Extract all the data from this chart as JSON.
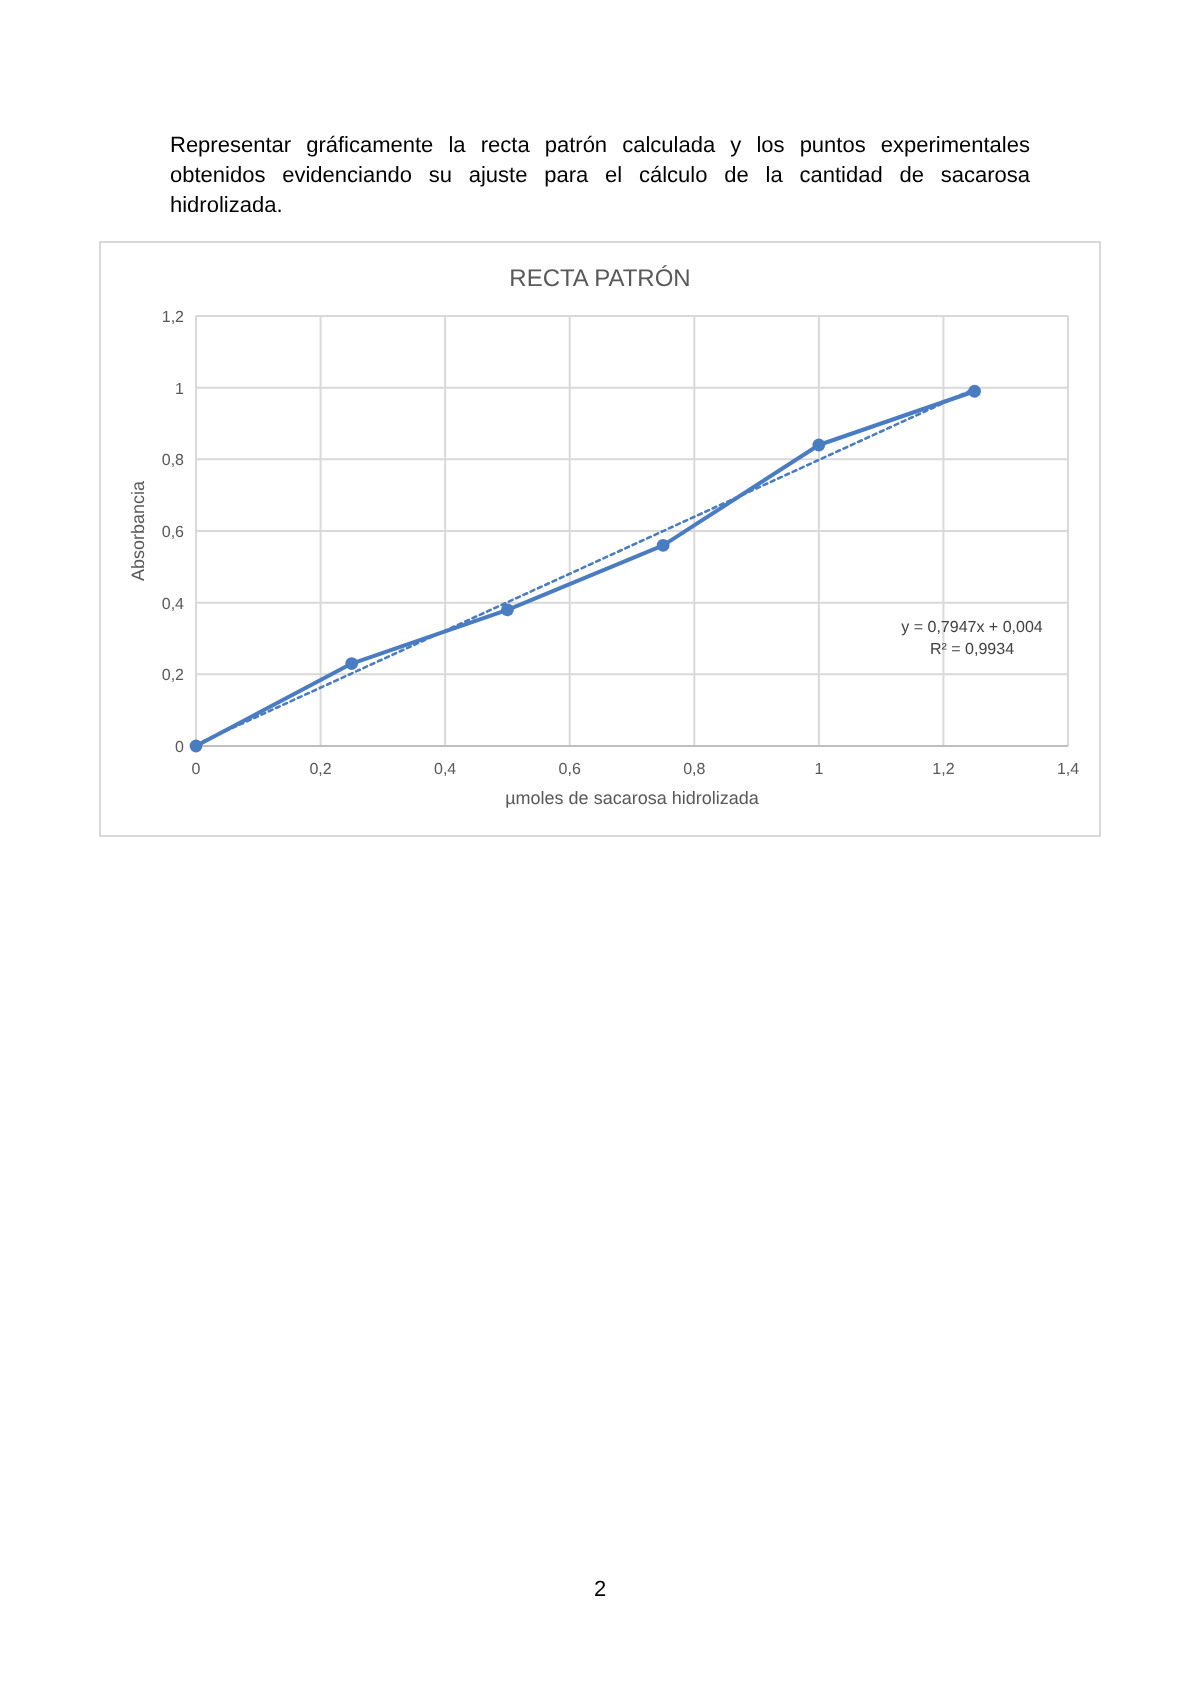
{
  "chart_data": {
    "type": "line",
    "title": "RECTA PATRÓN",
    "xlabel": "µmoles de sacarosa hidrolizada",
    "ylabel": "Absorbancia",
    "annotations": [
      "Representar gráficamente la recta patrón calculada y los puntos experimentales obtenidos evidenciando su ajuste para el cálculo de la cantidad de sacarosa hidrolizada.",
      "y = 0,7947x + 0,004",
      "R² = 0,9934",
      "2"
    ],
    "series": [
      {
        "color": "#4a7cc2",
        "x": [
          0,
          0.25,
          0.5,
          0.75,
          1,
          1.25
        ],
        "values": [
          0,
          0.23,
          0.38,
          0.56,
          0.84,
          0.99
        ],
        "marker": "circle",
        "line_style": "solid"
      },
      {
        "type": "line",
        "color": "#4a7cc2",
        "x": [
          0,
          1.25
        ],
        "values": [
          0.004,
          0.997
        ],
        "marker": "none",
        "line_style": "dotted"
      }
    ],
    "xlim": [
      0,
      1.4
    ],
    "ylim": [
      0,
      1.2
    ],
    "xticks": [
      0,
      {
        "value": 0.2,
        "label": "0,2"
      },
      {
        "value": 0.4,
        "label": "0,4"
      },
      {
        "value": 0.6,
        "label": "0,6"
      },
      {
        "value": 0.8,
        "label": "0,8"
      },
      1,
      {
        "value": 1.2,
        "label": "1,2"
      },
      {
        "value": 1.4,
        "label": "1,4"
      }
    ],
    "yticks": [
      0,
      {
        "value": 0.2,
        "label": "0,2"
      },
      {
        "value": 0.4,
        "label": "0,4"
      },
      {
        "value": 0.6,
        "label": "0,6"
      },
      {
        "value": 0.8,
        "label": "0,8"
      },
      1,
      {
        "value": 1.2,
        "label": "1,2"
      }
    ],
    "grid": true
  }
}
